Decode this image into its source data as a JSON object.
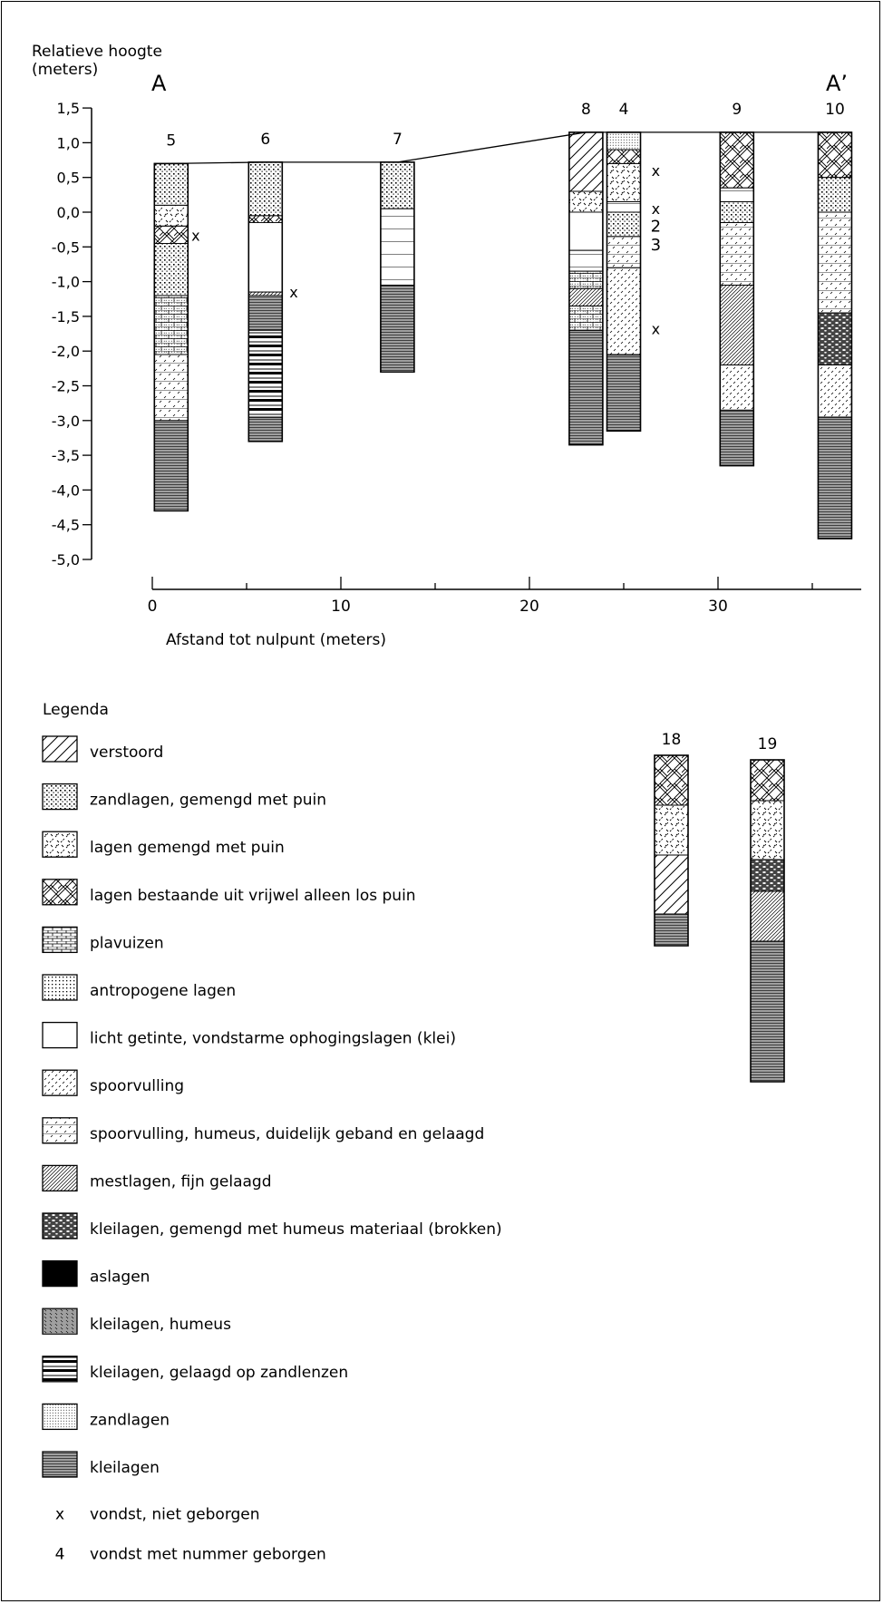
{
  "y_axis": {
    "title_line1": "Relatieve hoogte",
    "title_line2": "(meters)",
    "ticks": [
      "1,5",
      "1,0",
      "0,5",
      "0,0",
      "-0,5",
      "-1,0",
      "-1,5",
      "-2,0",
      "-2,5",
      "-3,0",
      "-3,5",
      "-4,0",
      "-4,5",
      "-5,0"
    ]
  },
  "x_axis": {
    "title": "Afstand tot nulpunt (meters)",
    "ticks": [
      "0",
      "10",
      "20",
      "30"
    ]
  },
  "section_labels": {
    "start": "A",
    "end": "A’"
  },
  "find_labels": {
    "unrecovered": "x",
    "num2": "2",
    "num3": "3"
  },
  "borings": [
    {
      "id": "5",
      "x": 1,
      "top": 0.7,
      "bottom": -4.3,
      "layers": [
        [
          "dotted",
          0.7,
          0.1
        ],
        [
          "cross",
          0.1,
          -0.2
        ],
        [
          "hatchbr",
          -0.2,
          -0.45
        ],
        [
          "dotted",
          -0.45,
          -1.2
        ],
        [
          "brick",
          -1.2,
          -2.05
        ],
        [
          "spoor2",
          -2.05,
          -3.0
        ],
        [
          "klei",
          -3.0,
          -4.3
        ]
      ]
    },
    {
      "id": "6",
      "x": 6,
      "top": 0.72,
      "bottom": -3.3,
      "layers": [
        [
          "dotted",
          0.72,
          -0.05
        ],
        [
          "hatchbr",
          -0.05,
          -0.15
        ],
        [
          "empty",
          -0.15,
          -1.15
        ],
        [
          "mest",
          -1.15,
          -1.2
        ],
        [
          "klei",
          -1.2,
          -1.7
        ],
        [
          "zandlens",
          -1.7,
          -2.95
        ],
        [
          "klei",
          -2.95,
          -3.3
        ]
      ]
    },
    {
      "id": "7",
      "x": 13,
      "top": 0.72,
      "bottom": -2.3,
      "layers": [
        [
          "dotted",
          0.72,
          0.05
        ],
        [
          "lines",
          0.05,
          -1.05
        ],
        [
          "klei",
          -1.05,
          -2.3
        ]
      ]
    },
    {
      "id": "8",
      "x": 23,
      "top": 1.15,
      "bottom": -3.35,
      "layers": [
        [
          "diag",
          1.15,
          0.3
        ],
        [
          "cross",
          0.3,
          0.0
        ],
        [
          "empty",
          0.0,
          -0.55
        ],
        [
          "lines",
          -0.55,
          -0.85
        ],
        [
          "brick",
          -0.85,
          -1.1
        ],
        [
          "mest",
          -1.1,
          -1.35
        ],
        [
          "brick",
          -1.35,
          -1.7
        ],
        [
          "klei",
          -1.7,
          -3.35
        ]
      ]
    },
    {
      "id": "4",
      "x": 25,
      "top": 1.15,
      "bottom": -3.15,
      "layers": [
        [
          "zand",
          1.15,
          0.9
        ],
        [
          "hatchbr",
          0.9,
          0.7
        ],
        [
          "cross",
          0.7,
          0.15
        ],
        [
          "lines",
          0.15,
          0.0
        ],
        [
          "dotted",
          0.0,
          -0.35
        ],
        [
          "spoor2",
          -0.35,
          -0.8
        ],
        [
          "spoor",
          -0.8,
          -2.05
        ],
        [
          "klei",
          -2.05,
          -3.15
        ]
      ]
    },
    {
      "id": "9",
      "x": 31,
      "top": 1.15,
      "bottom": -3.65,
      "layers": [
        [
          "hatchbr",
          1.15,
          0.35
        ],
        [
          "lines",
          0.35,
          0.15
        ],
        [
          "dotted",
          0.15,
          -0.15
        ],
        [
          "spoor2",
          -0.15,
          -1.05
        ],
        [
          "mest",
          -1.05,
          -2.2
        ],
        [
          "spoor",
          -2.2,
          -2.85
        ],
        [
          "klei",
          -2.85,
          -3.65
        ]
      ]
    },
    {
      "id": "10",
      "x": 36.2,
      "top": 1.15,
      "bottom": -4.7,
      "layers": [
        [
          "hatchbr",
          1.15,
          0.5
        ],
        [
          "dotted",
          0.5,
          0.0
        ],
        [
          "spoor2",
          0.0,
          -1.45
        ],
        [
          "humbrok",
          -1.45,
          -2.2
        ],
        [
          "spoor",
          -2.2,
          -2.95
        ],
        [
          "klei",
          -2.95,
          -4.7
        ]
      ]
    }
  ],
  "finds": [
    {
      "label": "x",
      "x": 2.3,
      "y": -0.33
    },
    {
      "label": "x",
      "x": 7.5,
      "y": -1.15
    },
    {
      "label": "x",
      "x": 26.7,
      "y": 0.6
    },
    {
      "label": "x",
      "x": 26.7,
      "y": 0.05
    },
    {
      "label": "2",
      "x": 26.7,
      "y": -0.2
    },
    {
      "label": "3",
      "x": 26.7,
      "y": -0.47
    },
    {
      "label": "x",
      "x": 26.7,
      "y": -1.68
    }
  ],
  "extra_borings": [
    {
      "id": "18",
      "layers": [
        [
          "hatchbr",
          0,
          55
        ],
        [
          "cross",
          55,
          110
        ],
        [
          "diag",
          110,
          175
        ],
        [
          "klei",
          175,
          210
        ]
      ]
    },
    {
      "id": "19",
      "layers": [
        [
          "hatchbr",
          0,
          45
        ],
        [
          "cross",
          45,
          110
        ],
        [
          "humbrok",
          110,
          145
        ],
        [
          "mest",
          145,
          200
        ],
        [
          "klei",
          200,
          355
        ]
      ]
    }
  ],
  "legend": {
    "title": "Legenda",
    "items": [
      {
        "pattern": "diag",
        "label": "verstoord"
      },
      {
        "pattern": "dotted",
        "label": "zandlagen, gemengd met puin"
      },
      {
        "pattern": "cross",
        "label": "lagen gemengd met puin"
      },
      {
        "pattern": "hatchbr",
        "label": "lagen bestaande uit vrijwel alleen los puin"
      },
      {
        "pattern": "tile",
        "label": "plavuizen"
      },
      {
        "pattern": "antro",
        "label": "antropogene lagen"
      },
      {
        "pattern": "empty",
        "label": "licht getinte, vondstarme ophogingslagen (klei)"
      },
      {
        "pattern": "spoor",
        "label": "spoorvulling"
      },
      {
        "pattern": "spoor2",
        "label": "spoorvulling, humeus, duidelijk geband en gelaagd"
      },
      {
        "pattern": "mest",
        "label": "mestlagen, fijn gelaagd"
      },
      {
        "pattern": "humbrok",
        "label": "kleilagen, gemengd met humeus materiaal (brokken)"
      },
      {
        "pattern": "solid",
        "label": "aslagen"
      },
      {
        "pattern": "kleihum",
        "label": "kleilagen, humeus"
      },
      {
        "pattern": "zandlens",
        "label": "kleilagen, gelaagd op zandlenzen"
      },
      {
        "pattern": "zand",
        "label": "zandlagen"
      },
      {
        "pattern": "klei",
        "label": "kleilagen"
      }
    ],
    "symbols": [
      {
        "symbol": "x",
        "label": "vondst, niet geborgen"
      },
      {
        "symbol": "4",
        "label": "vondst met nummer geborgen"
      }
    ]
  }
}
